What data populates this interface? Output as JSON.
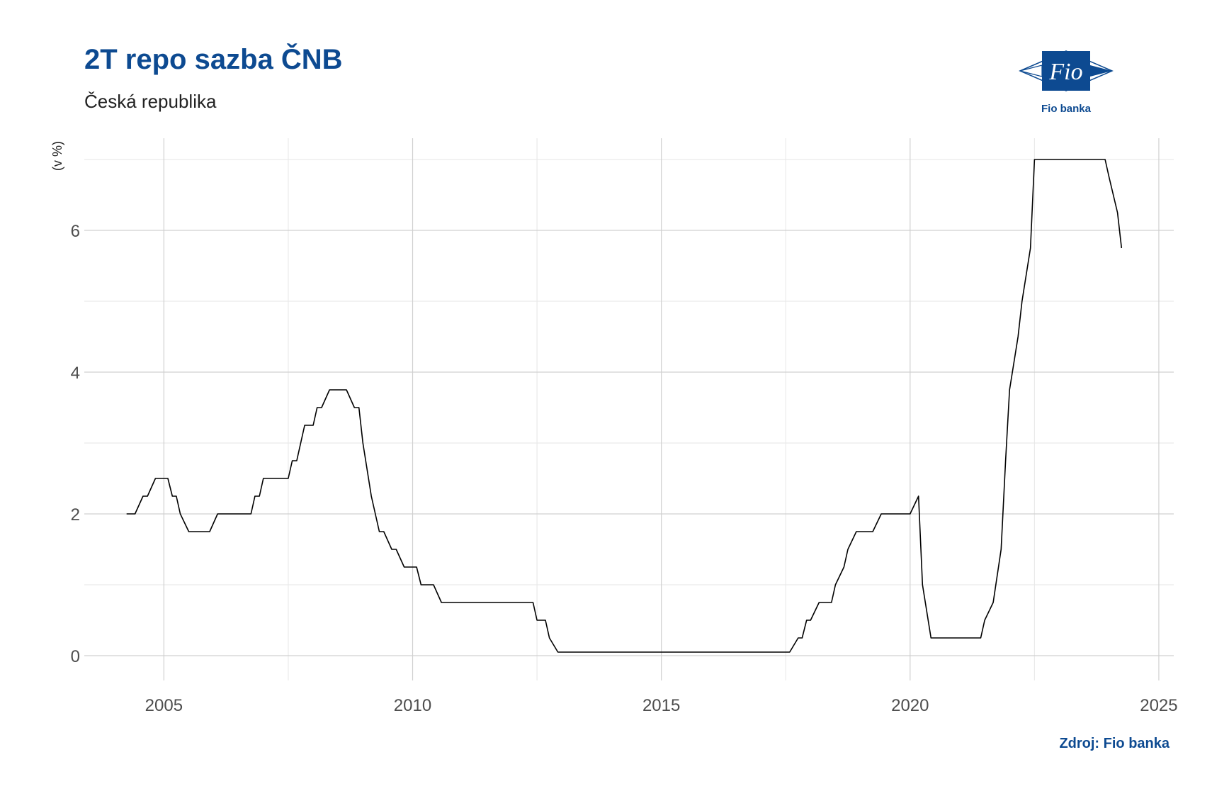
{
  "title": "2T repo sazba ČNB",
  "subtitle": "Česká republika",
  "source": "Zdroj: Fio banka",
  "logo": {
    "mark_text": "Fio",
    "caption": "Fio banka",
    "color": "#0d4a91"
  },
  "chart_data": {
    "type": "line",
    "ylabel": "(v %)",
    "xlabel": "",
    "xlim": [
      2003.4,
      2025.3
    ],
    "ylim": [
      -0.35,
      7.3
    ],
    "x_ticks": [
      2005,
      2010,
      2015,
      2020,
      2025
    ],
    "y_ticks": [
      0,
      2,
      4,
      6
    ],
    "grid": true,
    "line_color": "#000000",
    "series": [
      {
        "points": [
          [
            2004.25,
            2.0
          ],
          [
            2004.42,
            2.0
          ],
          [
            2004.58,
            2.25
          ],
          [
            2004.67,
            2.25
          ],
          [
            2004.83,
            2.5
          ],
          [
            2005.0,
            2.5
          ],
          [
            2005.08,
            2.5
          ],
          [
            2005.17,
            2.25
          ],
          [
            2005.25,
            2.25
          ],
          [
            2005.33,
            2.0
          ],
          [
            2005.5,
            1.75
          ],
          [
            2005.92,
            1.75
          ],
          [
            2006.08,
            2.0
          ],
          [
            2006.25,
            2.0
          ],
          [
            2006.58,
            2.0
          ],
          [
            2006.75,
            2.0
          ],
          [
            2006.83,
            2.25
          ],
          [
            2006.92,
            2.25
          ],
          [
            2007.0,
            2.5
          ],
          [
            2007.5,
            2.5
          ],
          [
            2007.58,
            2.75
          ],
          [
            2007.67,
            2.75
          ],
          [
            2007.83,
            3.25
          ],
          [
            2008.0,
            3.25
          ],
          [
            2008.08,
            3.5
          ],
          [
            2008.17,
            3.5
          ],
          [
            2008.33,
            3.75
          ],
          [
            2008.67,
            3.75
          ],
          [
            2008.83,
            3.5
          ],
          [
            2008.92,
            3.5
          ],
          [
            2009.0,
            3.0
          ],
          [
            2009.17,
            2.25
          ],
          [
            2009.33,
            1.75
          ],
          [
            2009.42,
            1.75
          ],
          [
            2009.58,
            1.5
          ],
          [
            2009.67,
            1.5
          ],
          [
            2009.83,
            1.25
          ],
          [
            2010.08,
            1.25
          ],
          [
            2010.17,
            1.0
          ],
          [
            2010.42,
            1.0
          ],
          [
            2010.58,
            0.75
          ],
          [
            2011.0,
            0.75
          ],
          [
            2012.42,
            0.75
          ],
          [
            2012.5,
            0.5
          ],
          [
            2012.67,
            0.5
          ],
          [
            2012.75,
            0.25
          ],
          [
            2012.92,
            0.05
          ],
          [
            2013.0,
            0.05
          ],
          [
            2015.0,
            0.05
          ],
          [
            2017.58,
            0.05
          ],
          [
            2017.75,
            0.25
          ],
          [
            2017.83,
            0.25
          ],
          [
            2017.92,
            0.5
          ],
          [
            2018.0,
            0.5
          ],
          [
            2018.17,
            0.75
          ],
          [
            2018.42,
            0.75
          ],
          [
            2018.5,
            1.0
          ],
          [
            2018.67,
            1.25
          ],
          [
            2018.75,
            1.5
          ],
          [
            2018.92,
            1.75
          ],
          [
            2019.25,
            1.75
          ],
          [
            2019.42,
            2.0
          ],
          [
            2020.0,
            2.0
          ],
          [
            2020.17,
            2.25
          ],
          [
            2020.25,
            1.0
          ],
          [
            2020.42,
            0.25
          ],
          [
            2021.0,
            0.25
          ],
          [
            2021.42,
            0.25
          ],
          [
            2021.5,
            0.5
          ],
          [
            2021.67,
            0.75
          ],
          [
            2021.83,
            1.5
          ],
          [
            2021.92,
            2.75
          ],
          [
            2022.0,
            3.75
          ],
          [
            2022.17,
            4.5
          ],
          [
            2022.25,
            5.0
          ],
          [
            2022.42,
            5.75
          ],
          [
            2022.5,
            7.0
          ],
          [
            2023.0,
            7.0
          ],
          [
            2023.92,
            7.0
          ],
          [
            2024.0,
            6.75
          ],
          [
            2024.17,
            6.25
          ],
          [
            2024.25,
            5.75
          ]
        ]
      }
    ]
  }
}
